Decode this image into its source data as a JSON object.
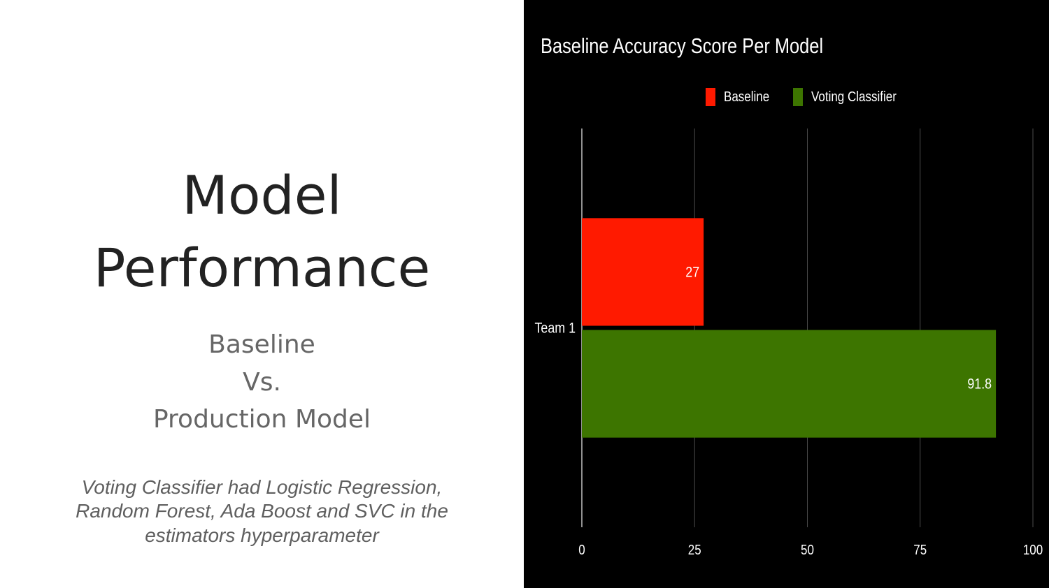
{
  "slide": {
    "title_line1": "Model",
    "title_line2": "Performance",
    "subtitle_line1": "Baseline",
    "subtitle_line2": "Vs.",
    "subtitle_line3": "Production Model",
    "note_line1": "Voting Classifier had Logistic Regression,",
    "note_line2": "Random Forest, Ada Boost and SVC in the",
    "note_line3": "estimators hyperparameter"
  },
  "colors": {
    "background_left": "#ffffff",
    "background_chart": "#000000",
    "baseline": "#ff1a00",
    "voting": "#3d7500",
    "text_chart": "#ffffff",
    "grid": "#4a4a4a"
  },
  "chart_data": {
    "type": "bar",
    "orientation": "horizontal",
    "title": "Baseline Accuracy Score Per Model",
    "categories": [
      "Team 1"
    ],
    "series": [
      {
        "name": "Baseline",
        "values": [
          27
        ],
        "color": "#ff1a00"
      },
      {
        "name": "Voting Classifier",
        "values": [
          91.8
        ],
        "color": "#3d7500"
      }
    ],
    "xlim": [
      0,
      100
    ],
    "xticks": [
      0,
      25,
      50,
      75,
      100
    ],
    "grid": true,
    "legend_position": "top-center",
    "data_labels": true
  }
}
